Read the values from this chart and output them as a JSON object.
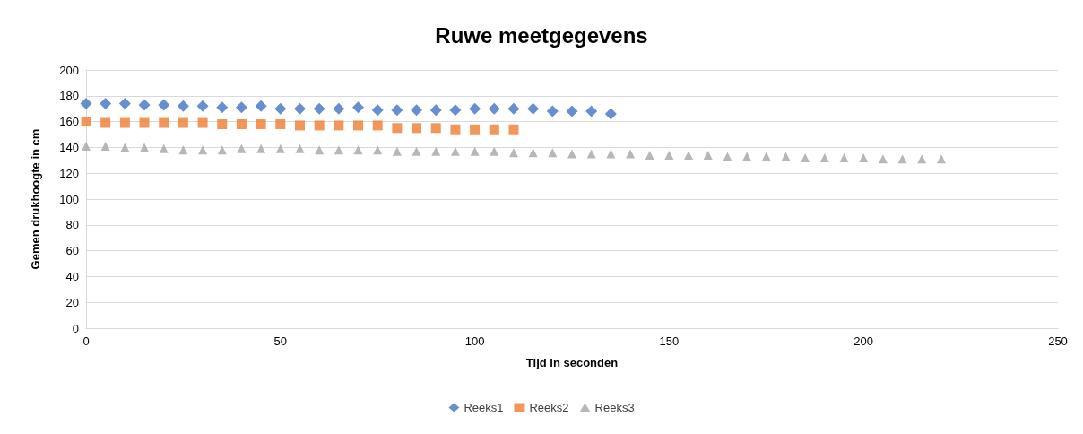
{
  "chart_data": {
    "type": "scatter",
    "title": "Ruwe meetgegevens",
    "xlabel": "Tijd in seconden",
    "ylabel": "Gemen drukhoogte in cm",
    "xlim": [
      0,
      250
    ],
    "xticks": [
      0,
      50,
      100,
      150,
      200,
      250
    ],
    "ylim": [
      0,
      200
    ],
    "yticks": [
      0,
      20,
      40,
      60,
      80,
      100,
      120,
      140,
      160,
      180,
      200
    ],
    "grid": "y",
    "legend": "bottom",
    "series": [
      {
        "name": "Reeks1",
        "color": "#4472c4",
        "marker": "diamond",
        "x": [
          0,
          5,
          10,
          15,
          20,
          25,
          30,
          35,
          40,
          45,
          50,
          55,
          60,
          65,
          70,
          75,
          80,
          85,
          90,
          95,
          100,
          105,
          110,
          115,
          120,
          125,
          130,
          135
        ],
        "values": [
          174,
          174,
          174,
          173,
          173,
          172,
          172,
          171,
          171,
          172,
          170,
          170,
          170,
          170,
          171,
          169,
          169,
          169,
          169,
          169,
          170,
          170,
          170,
          170,
          168,
          168,
          168,
          166
        ]
      },
      {
        "name": "Reeks2",
        "color": "#ed7d31",
        "marker": "square",
        "x": [
          0,
          5,
          10,
          15,
          20,
          25,
          30,
          35,
          40,
          45,
          50,
          55,
          60,
          65,
          70,
          75,
          80,
          85,
          90,
          95,
          100,
          105,
          110
        ],
        "values": [
          160,
          159,
          159,
          159,
          159,
          159,
          159,
          158,
          158,
          158,
          158,
          157,
          157,
          157,
          157,
          157,
          155,
          155,
          155,
          154,
          154,
          154,
          154
        ]
      },
      {
        "name": "Reeks3",
        "color": "#a5a5a5",
        "marker": "triangle",
        "x": [
          0,
          5,
          10,
          15,
          20,
          25,
          30,
          35,
          40,
          45,
          50,
          55,
          60,
          65,
          70,
          75,
          80,
          85,
          90,
          95,
          100,
          105,
          110,
          115,
          120,
          125,
          130,
          135,
          140,
          145,
          150,
          155,
          160,
          165,
          170,
          175,
          180,
          185,
          190,
          195,
          200,
          205,
          210,
          215,
          220
        ],
        "values": [
          141,
          141,
          140,
          140,
          139,
          138,
          138,
          138,
          139,
          139,
          139,
          139,
          138,
          138,
          138,
          138,
          137,
          137,
          137,
          137,
          137,
          137,
          136,
          136,
          136,
          135,
          135,
          135,
          135,
          134,
          134,
          134,
          134,
          133,
          133,
          133,
          133,
          132,
          132,
          132,
          132,
          131,
          131,
          131,
          131
        ]
      }
    ]
  }
}
